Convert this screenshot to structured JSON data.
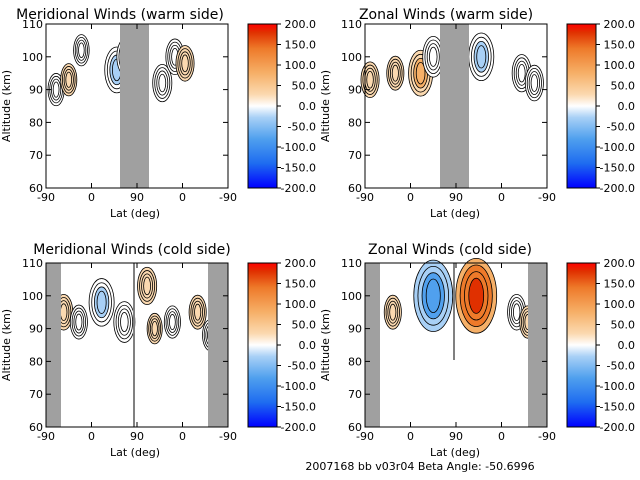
{
  "footer": "2007168 bb v03r04   Beta Angle: -50.6996",
  "colorbar": {
    "ticks": [
      "200.0",
      "150.0",
      "100.0",
      "50.0",
      "0.0",
      "-50.0",
      "-100.0",
      "-150.0",
      "-200.0"
    ],
    "colors": [
      "#0000ff",
      "#1e6cf0",
      "#50a0ee",
      "#a8d0f6",
      "#ffffff",
      "#fbd9b0",
      "#f6b068",
      "#ee7a2a",
      "#e03000",
      "#ff0000"
    ]
  },
  "chart_data": [
    {
      "type": "heatmap",
      "title": "Meridional Winds (warm side)",
      "xlabel": "Lat (deg)",
      "ylabel": "Altitude (km)",
      "xticks": [
        "-90",
        "0",
        "90",
        "0",
        "-90"
      ],
      "yticks": [
        "110",
        "100",
        "90",
        "80",
        "70",
        "60"
      ],
      "ylim": [
        60,
        110
      ],
      "zlim": [
        -200,
        200
      ],
      "blobs": [
        {
          "lat": 50,
          "alt": 96,
          "value": -55
        },
        {
          "lat": 70,
          "alt": 100,
          "value": -35
        },
        {
          "lat": 140,
          "alt": 92,
          "value": -30
        },
        {
          "lat": 165,
          "alt": 100,
          "value": -25
        },
        {
          "lat": 185,
          "alt": 98,
          "value": 25
        },
        {
          "lat": -70,
          "alt": 90,
          "value": -15
        },
        {
          "lat": -45,
          "alt": 93,
          "value": 15
        },
        {
          "lat": -20,
          "alt": 102,
          "value": -12
        }
      ]
    },
    {
      "type": "heatmap",
      "title": "Zonal Winds (warm side)",
      "xlabel": "Lat (deg)",
      "ylabel": "Altitude (km)",
      "xticks": [
        "-90",
        "0",
        "90",
        "0",
        "-90"
      ],
      "yticks": [
        "110",
        "100",
        "90",
        "80",
        "70",
        "60"
      ],
      "ylim": [
        60,
        110
      ],
      "zlim": [
        -200,
        200
      ],
      "blobs": [
        {
          "lat": -80,
          "alt": 93,
          "value": 25
        },
        {
          "lat": -30,
          "alt": 95,
          "value": 20
        },
        {
          "lat": 20,
          "alt": 95,
          "value": 55
        },
        {
          "lat": 45,
          "alt": 100,
          "value": -40
        },
        {
          "lat": 140,
          "alt": 100,
          "value": -60
        },
        {
          "lat": 220,
          "alt": 95,
          "value": -30
        },
        {
          "lat": 245,
          "alt": 92,
          "value": -25
        }
      ]
    },
    {
      "type": "heatmap",
      "title": "Meridional Winds (cold side)",
      "xlabel": "Lat (deg)",
      "ylabel": "Altitude (km)",
      "xticks": [
        "-90",
        "0",
        "90",
        "0",
        "-90"
      ],
      "yticks": [
        "110",
        "100",
        "90",
        "80",
        "70",
        "60"
      ],
      "ylim": [
        60,
        110
      ],
      "zlim": [
        -200,
        200
      ],
      "blobs": [
        {
          "lat": -55,
          "alt": 95,
          "value": 25
        },
        {
          "lat": -25,
          "alt": 92,
          "value": -20
        },
        {
          "lat": 20,
          "alt": 98,
          "value": -60
        },
        {
          "lat": 65,
          "alt": 92,
          "value": -40
        },
        {
          "lat": 110,
          "alt": 103,
          "value": 30
        },
        {
          "lat": 125,
          "alt": 90,
          "value": 10
        },
        {
          "lat": 160,
          "alt": 92,
          "value": -15
        },
        {
          "lat": 210,
          "alt": 95,
          "value": 20
        },
        {
          "lat": 235,
          "alt": 88,
          "value": -12
        }
      ]
    },
    {
      "type": "heatmap",
      "title": "Zonal Winds (cold side)",
      "xlabel": "Lat (deg)",
      "ylabel": "Altitude (km)",
      "xticks": [
        "-90",
        "0",
        "90",
        "0",
        "-90"
      ],
      "yticks": [
        "110",
        "100",
        "90",
        "80",
        "70",
        "60"
      ],
      "ylim": [
        60,
        110
      ],
      "zlim": [
        -200,
        200
      ],
      "blobs": [
        {
          "lat": -35,
          "alt": 95,
          "value": 20
        },
        {
          "lat": 45,
          "alt": 100,
          "value": -130
        },
        {
          "lat": 130,
          "alt": 100,
          "value": 140
        },
        {
          "lat": 210,
          "alt": 95,
          "value": -25
        },
        {
          "lat": 232,
          "alt": 92,
          "value": 15
        }
      ]
    }
  ]
}
